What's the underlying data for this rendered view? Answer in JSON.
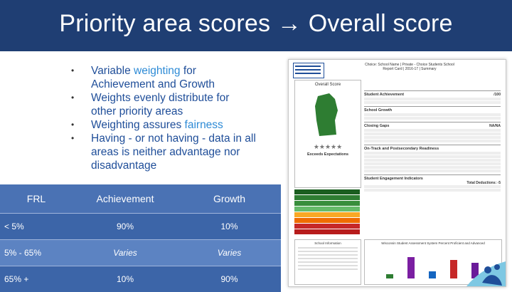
{
  "slide": {
    "title": "Priority area scores → Overall score"
  },
  "bullets": [
    {
      "before": "Variable weighting ",
      "highlight": "",
      "after": "for Achievement and Growth",
      "highlight_word": "weighting"
    },
    {
      "before": "Weights evenly distribute for other priority areas",
      "highlight": "",
      "after": ""
    },
    {
      "before": "Weighting assures ",
      "highlight": "fairness",
      "after": ""
    },
    {
      "before": "Having - or not having - data in all areas is neither advantage nor disadvantage",
      "highlight": "",
      "after": ""
    }
  ],
  "bullet_lines": {
    "b1a": "Variable ",
    "b1h": "weighting",
    "b1b": " for Achievement and Growth",
    "b2": "Weights evenly distribute for other priority areas",
    "b3a": "Weighting assures ",
    "b3h": "fairness",
    "b4": "Having - or not having - data in all areas is neither advantage nor disadvantage"
  },
  "table": {
    "headers": [
      "FRL",
      "Achievement",
      "Growth"
    ],
    "rows": [
      [
        "< 5%",
        "90%",
        "10%"
      ],
      [
        "5% - 65%",
        "Varies",
        "Varies"
      ],
      [
        "65% +",
        "10%",
        "90%"
      ]
    ]
  },
  "report_card": {
    "header": "Choice: School Name | Private - Choice Students School Report Card | 2016-17 | Summary",
    "overall_label": "Overall Score",
    "rating": "Exceeds Expectations",
    "section_1": "Student Achievement",
    "section_1_score": "/100",
    "section_2": "School Growth",
    "section_3": "Closing Gaps",
    "section_3_score": "NA/NA",
    "section_4": "On-Track and Postsecondary Readiness",
    "section_5": "Student Engagement Indicators",
    "deductions": "Total Deductions: -5",
    "info_label": "School Information",
    "chart_title": "Wisconsin Student Assessment System Percent Proficient and Advanced"
  },
  "colors": {
    "title_bar": "#1f3e73",
    "bullet_text": "#1f4e99",
    "highlight": "#2e8bd6",
    "table_header": "#4a72b4",
    "table_row_dark": "#3c65a8",
    "table_row_light": "#5c83c2"
  }
}
